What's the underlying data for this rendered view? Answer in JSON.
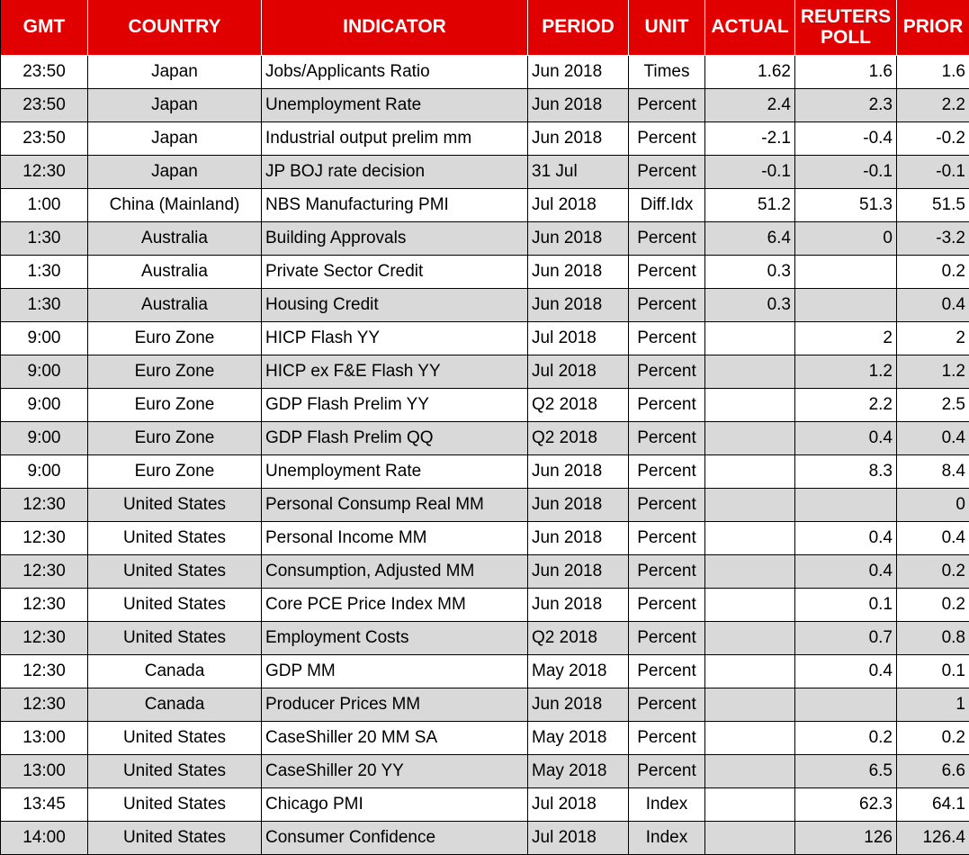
{
  "table": {
    "header": [
      "GMT",
      "COUNTRY",
      "INDICATOR",
      "PERIOD",
      "UNIT",
      "ACTUAL",
      "REUTERS POLL",
      "PRIOR"
    ],
    "rows": [
      [
        "23:50",
        "Japan",
        "Jobs/Applicants Ratio",
        "Jun 2018",
        "Times",
        "1.62",
        "1.6",
        "1.6"
      ],
      [
        "23:50",
        "Japan",
        "Unemployment Rate",
        "Jun 2018",
        "Percent",
        "2.4",
        "2.3",
        "2.2"
      ],
      [
        "23:50",
        "Japan",
        "Industrial output prelim mm",
        "Jun 2018",
        "Percent",
        "-2.1",
        "-0.4",
        "-0.2"
      ],
      [
        "12:30",
        "Japan",
        "JP BOJ rate decision",
        "31 Jul",
        "Percent",
        "-0.1",
        "-0.1",
        "-0.1"
      ],
      [
        "1:00",
        "China (Mainland)",
        "NBS Manufacturing PMI",
        "Jul 2018",
        "Diff.Idx",
        "51.2",
        "51.3",
        "51.5"
      ],
      [
        "1:30",
        "Australia",
        "Building Approvals",
        "Jun 2018",
        "Percent",
        "6.4",
        "0",
        "-3.2"
      ],
      [
        "1:30",
        "Australia",
        "Private Sector Credit",
        "Jun 2018",
        "Percent",
        "0.3",
        null,
        "0.2"
      ],
      [
        "1:30",
        "Australia",
        "Housing Credit",
        "Jun 2018",
        "Percent",
        "0.3",
        null,
        "0.4"
      ],
      [
        "9:00",
        "Euro Zone",
        "HICP Flash YY",
        "Jul 2018",
        "Percent",
        null,
        "2",
        "2"
      ],
      [
        "9:00",
        "Euro Zone",
        "HICP ex F&E Flash YY",
        "Jul 2018",
        "Percent",
        null,
        "1.2",
        "1.2"
      ],
      [
        "9:00",
        "Euro Zone",
        "GDP Flash Prelim YY",
        "Q2 2018",
        "Percent",
        null,
        "2.2",
        "2.5"
      ],
      [
        "9:00",
        "Euro Zone",
        "GDP Flash Prelim QQ",
        "Q2 2018",
        "Percent",
        null,
        "0.4",
        "0.4"
      ],
      [
        "9:00",
        "Euro Zone",
        "Unemployment Rate",
        "Jun 2018",
        "Percent",
        null,
        "8.3",
        "8.4"
      ],
      [
        "12:30",
        "United States",
        "Personal Consump Real MM",
        "Jun 2018",
        "Percent",
        null,
        null,
        "0"
      ],
      [
        "12:30",
        "United States",
        "Personal Income MM",
        "Jun 2018",
        "Percent",
        null,
        "0.4",
        "0.4"
      ],
      [
        "12:30",
        "United States",
        "Consumption, Adjusted MM",
        "Jun 2018",
        "Percent",
        null,
        "0.4",
        "0.2"
      ],
      [
        "12:30",
        "United States",
        "Core PCE Price Index MM",
        "Jun 2018",
        "Percent",
        null,
        "0.1",
        "0.2"
      ],
      [
        "12:30",
        "United States",
        "Employment Costs",
        "Q2 2018",
        "Percent",
        null,
        "0.7",
        "0.8"
      ],
      [
        "12:30",
        "Canada",
        "GDP MM",
        "May 2018",
        "Percent",
        null,
        "0.4",
        "0.1"
      ],
      [
        "12:30",
        "Canada",
        "Producer Prices MM",
        "Jun 2018",
        "Percent",
        null,
        null,
        "1"
      ],
      [
        "13:00",
        "United States",
        "CaseShiller 20 MM SA",
        "May 2018",
        "Percent",
        null,
        "0.2",
        "0.2"
      ],
      [
        "13:00",
        "United States",
        "CaseShiller 20 YY",
        "May 2018",
        "Percent",
        null,
        "6.5",
        "6.6"
      ],
      [
        "13:45",
        "United States",
        "Chicago PMI",
        "Jul 2018",
        "Index",
        null,
        "62.3",
        "64.1"
      ],
      [
        "14:00",
        "United States",
        "Consumer Confidence",
        "Jul 2018",
        "Index",
        null,
        "126",
        "126.4"
      ]
    ]
  }
}
